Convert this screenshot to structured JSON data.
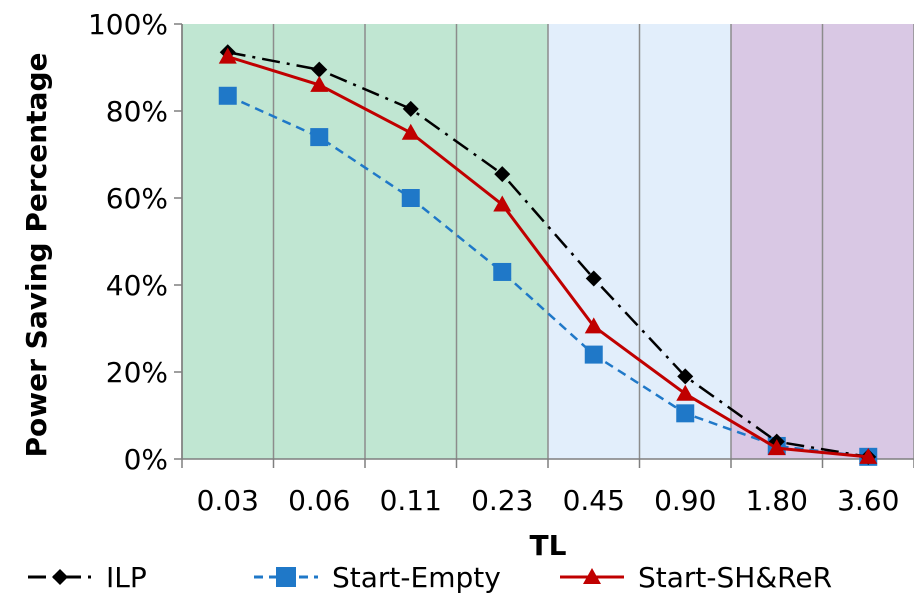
{
  "chart_data": {
    "type": "line",
    "title": "",
    "xlabel": "TL",
    "ylabel": "Power Saving Percentage",
    "categories": [
      "0.03",
      "0.06",
      "0.11",
      "0.23",
      "0.45",
      "0.90",
      "1.80",
      "3.60"
    ],
    "y_ticks": [
      "0%",
      "20%",
      "40%",
      "60%",
      "80%",
      "100%"
    ],
    "ylim": [
      0,
      100
    ],
    "grid": "vertical",
    "legend_position": "bottom",
    "background_bands": [
      {
        "from_category": 0,
        "to_category": 3,
        "color": "#c0e6d2"
      },
      {
        "from_category": 4,
        "to_category": 5,
        "color": "#e2eefb"
      },
      {
        "from_category": 6,
        "to_category": 7,
        "color": "#d9c8e4"
      }
    ],
    "series": [
      {
        "name": "ILP",
        "values": [
          93.5,
          89.5,
          80.5,
          65.5,
          41.5,
          19,
          4,
          0.5
        ],
        "color": "#000000",
        "marker": "diamond",
        "dash": "dash-dot"
      },
      {
        "name": "Start-Empty",
        "values": [
          83.5,
          74,
          60,
          43,
          24,
          10.5,
          3,
          0.5
        ],
        "color": "#1f78c8",
        "marker": "square",
        "dash": "dashed"
      },
      {
        "name": "Start-SH&ReR",
        "values": [
          92.5,
          86,
          75,
          58.5,
          30.5,
          15,
          2.5,
          0.5
        ],
        "color": "#c00000",
        "marker": "triangle",
        "dash": "solid"
      }
    ]
  }
}
